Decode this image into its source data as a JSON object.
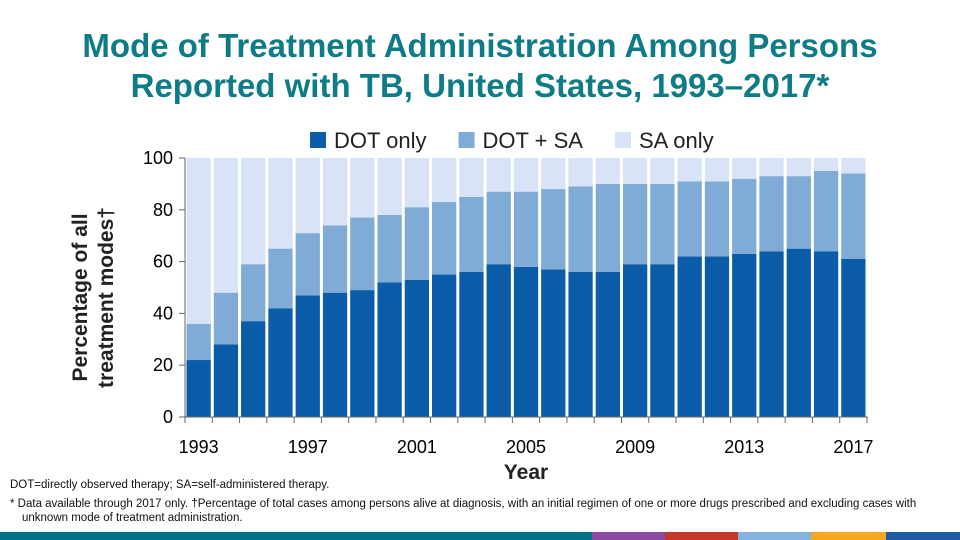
{
  "title_line1": "Mode of Treatment Administration Among Persons",
  "title_line2": "Reported with TB, United States, 1993–2017*",
  "chart_data": {
    "type": "bar",
    "stacked": true,
    "title": "Mode of Treatment Administration Among Persons Reported with TB, United States, 1993–2017*",
    "xlabel": "Year",
    "ylabel_line1": "Percentage of all",
    "ylabel_line2": "treatment modes†",
    "ylim": [
      0,
      100
    ],
    "yticks": [
      0,
      20,
      40,
      60,
      80,
      100
    ],
    "xtick_labels": [
      "1993",
      "1997",
      "2001",
      "2005",
      "2009",
      "2013",
      "2017"
    ],
    "categories": [
      "1993",
      "1994",
      "1995",
      "1996",
      "1997",
      "1998",
      "1999",
      "2000",
      "2001",
      "2002",
      "2003",
      "2004",
      "2005",
      "2006",
      "2007",
      "2008",
      "2009",
      "2010",
      "2011",
      "2012",
      "2013",
      "2014",
      "2015",
      "2016",
      "2017"
    ],
    "legend_position": "top",
    "series": [
      {
        "name": "DOT only",
        "color": "#0b5ca8",
        "values": [
          22,
          28,
          37,
          42,
          47,
          48,
          49,
          52,
          53,
          55,
          56,
          59,
          58,
          57,
          56,
          56,
          59,
          59,
          62,
          62,
          63,
          64,
          65,
          64,
          61
        ]
      },
      {
        "name": "DOT + SA",
        "color": "#7fabd6",
        "values": [
          14,
          20,
          22,
          23,
          24,
          26,
          28,
          26,
          28,
          28,
          29,
          28,
          29,
          31,
          33,
          34,
          31,
          31,
          29,
          29,
          29,
          29,
          28,
          31,
          33
        ]
      },
      {
        "name": "SA only",
        "color": "#d8e3f8",
        "values": [
          64,
          52,
          41,
          35,
          29,
          26,
          23,
          22,
          19,
          17,
          15,
          13,
          13,
          12,
          11,
          10,
          10,
          10,
          9,
          9,
          8,
          7,
          7,
          5,
          6
        ]
      }
    ]
  },
  "notes": {
    "abbrev": "DOT=directly observed therapy; SA=self-administered therapy.",
    "footnote": "* Data available through 2017 only. †Percentage of total cases among persons alive at diagnosis, with an initial regimen of one or more drugs prescribed and excluding cases with unknown mode of treatment administration."
  },
  "bottom_bar_colors": [
    "#00758a",
    "#8b4b9e",
    "#c0392b",
    "#84b3dd",
    "#f5a623",
    "#1f5aa6"
  ]
}
